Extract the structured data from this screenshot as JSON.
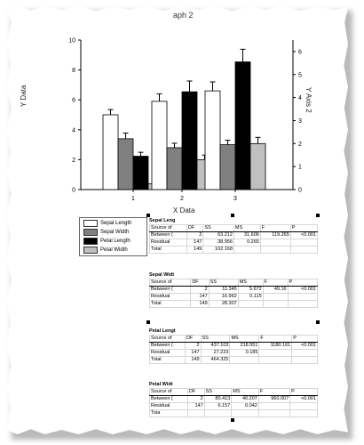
{
  "graph": {
    "title": "aph 2",
    "ylabel": "Y Data",
    "ylabel_right": "Y Axis 2",
    "xlabel": "X Data"
  },
  "chart_data": {
    "type": "bar",
    "categories": [
      "1",
      "2",
      "3"
    ],
    "ylim": [
      0,
      10
    ],
    "yticks": [
      "0",
      "2",
      "4",
      "6",
      "8",
      "10"
    ],
    "y2lim": [
      0,
      6.5
    ],
    "y2ticks": [
      "0",
      "1",
      "2",
      "3",
      "4",
      "5",
      "6"
    ],
    "series": [
      {
        "name": "Sepal Length",
        "values": [
          5.0,
          5.9,
          6.6
        ],
        "errors": [
          0.35,
          0.5,
          0.6
        ],
        "axis": "left",
        "color": "#ffffff"
      },
      {
        "name": "Sepal Width",
        "values": [
          3.4,
          2.8,
          3.0
        ],
        "errors": [
          0.38,
          0.3,
          0.3
        ],
        "axis": "left",
        "color": "#808080"
      },
      {
        "name": "Petal Length",
        "values": [
          1.45,
          4.25,
          5.55
        ],
        "errors": [
          0.17,
          0.47,
          0.55
        ],
        "axis": "right",
        "color": "#000000"
      },
      {
        "name": "Petal Width",
        "values": [
          0.25,
          1.3,
          2.0
        ],
        "errors": [
          0.1,
          0.2,
          0.27
        ],
        "axis": "right",
        "color": "#c0c0c0"
      }
    ]
  },
  "tables": [
    {
      "title": "Sepal Leng",
      "header": [
        "Source of",
        "DF",
        "SS",
        "MS",
        "F",
        "P"
      ],
      "rows": [
        [
          "Between (",
          "2",
          "63.212",
          "31.606",
          "119.265",
          "<0.001"
        ],
        [
          "Residual",
          "147",
          "38.956",
          "0.265",
          "",
          ""
        ],
        [
          "Total",
          "149",
          "102.168",
          "",
          "",
          ""
        ]
      ]
    },
    {
      "title": "Sepal Widt",
      "header": [
        "Source of",
        "DF",
        "SS",
        "MS",
        "F",
        "P"
      ],
      "rows": [
        [
          "Between (",
          "2",
          "11.345",
          "5.672",
          "49.16",
          "<0.001"
        ],
        [
          "Residual",
          "147",
          "16.962",
          "0.115",
          "",
          ""
        ],
        [
          "Total",
          "149",
          "28.307",
          "",
          "",
          ""
        ]
      ]
    },
    {
      "title": "Petal Lengt",
      "header": [
        "Source of",
        "DF",
        "SS",
        "MS",
        "F",
        "P"
      ],
      "rows": [
        [
          "Between (",
          "2",
          "437.103",
          "218.551",
          "1180.161",
          "<0.001"
        ],
        [
          "Residual",
          "147",
          "27.223",
          "0.185",
          "",
          ""
        ],
        [
          "Total",
          "149",
          "464.325",
          "",
          "",
          ""
        ]
      ]
    },
    {
      "title": "Petal Widt",
      "header": [
        "Source of",
        "DF",
        "SS",
        "MS",
        "F",
        "P"
      ],
      "rows": [
        [
          "Between (",
          "2",
          "80.413",
          "40.207",
          "960.007",
          "<0.001"
        ],
        [
          "Residual",
          "147",
          "6.157",
          "0.042",
          "",
          ""
        ],
        [
          "Tota",
          "",
          "",
          "",
          "",
          ""
        ]
      ]
    }
  ]
}
